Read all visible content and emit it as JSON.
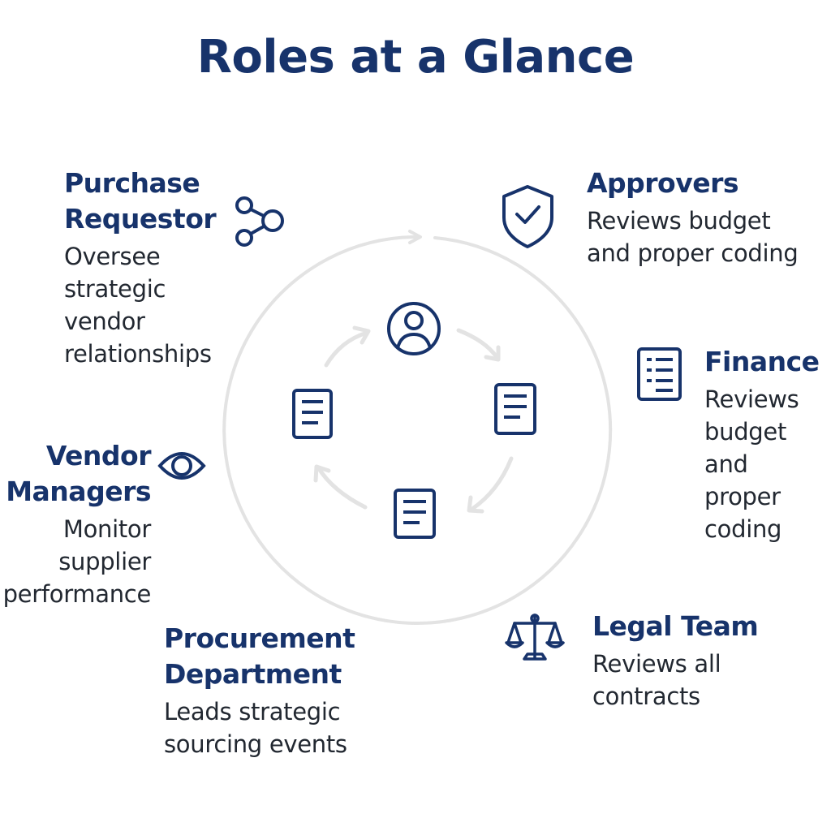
{
  "title": "Roles at a Glance",
  "colors": {
    "navy": "#17336b",
    "ring": "#e3e3e3",
    "text": "#222831"
  },
  "roles": [
    {
      "id": "purchase-requestor",
      "name": "Purchase\nRequestor",
      "description": "Oversee\nstrategic\nvendor\nrelationships",
      "icon": "share-nodes-icon"
    },
    {
      "id": "approvers",
      "name": "Approvers",
      "description": "Reviews budget\nand proper coding",
      "icon": "shield-check-icon"
    },
    {
      "id": "finance",
      "name": "Finance",
      "description": "Reviews\nbudget\nand\nproper\ncoding",
      "icon": "ledger-document-icon"
    },
    {
      "id": "vendor-managers",
      "name": "Vendor\nManagers",
      "description": "Monitor\nsupplier\nperformance",
      "icon": "eye-icon"
    },
    {
      "id": "procurement-department",
      "name": "Procurement\nDepartment",
      "description": "Leads strategic\nsourcing events",
      "icon": "none"
    },
    {
      "id": "legal-team",
      "name": "Legal Team",
      "description": "Reviews all\ncontracts",
      "icon": "scales-icon"
    }
  ],
  "center_cycle": {
    "icons": [
      "user-circle-icon",
      "document-icon",
      "document-icon",
      "document-icon"
    ]
  }
}
